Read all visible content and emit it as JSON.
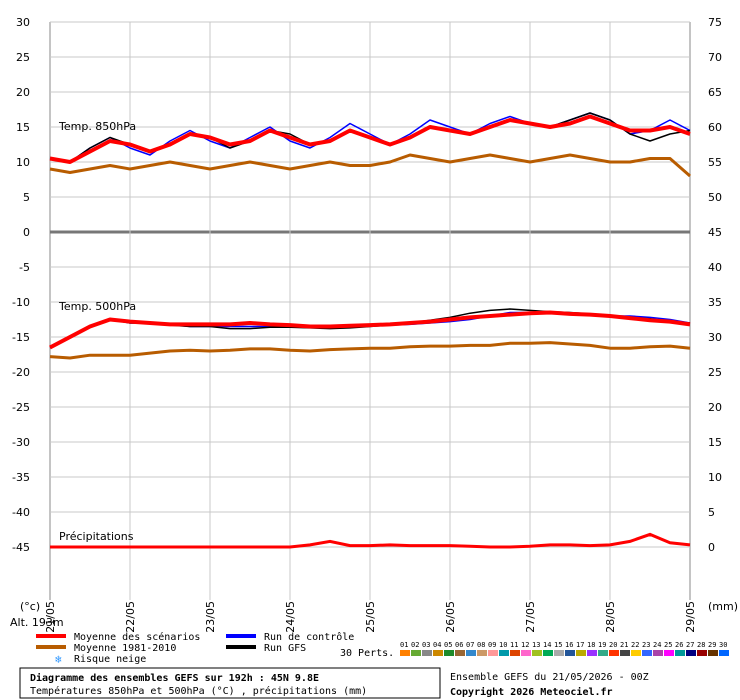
{
  "chart_data": {
    "type": "line",
    "x_dates": [
      "22/05",
      "23/05",
      "24/05",
      "25/05",
      "26/05",
      "27/05",
      "28/05",
      "29/05"
    ],
    "x_start_label": "21/05",
    "y_left_ticks": [
      30,
      25,
      20,
      15,
      10,
      5,
      0,
      -5,
      -10,
      -15,
      -20,
      -25,
      -30,
      -35,
      -40,
      -45
    ],
    "y_right_ticks": [
      75,
      70,
      65,
      60,
      55,
      50,
      45,
      40,
      35,
      30,
      25,
      20,
      15,
      10,
      5,
      0
    ],
    "y_left_unit": "(°c)",
    "y_right_unit": "(mm)",
    "altitude_label": "Alt. 193m",
    "panels": {
      "t850_label": "Temp. 850hPa",
      "t500_label": "Temp. 500hPa",
      "precip_label": "Précipitations"
    },
    "series": [
      {
        "name": "Moyenne des scénarios",
        "color": "#ff0000",
        "t850": [
          10.5,
          10,
          11.5,
          13,
          12.5,
          11.5,
          12.5,
          14,
          13.5,
          12.5,
          13,
          14.5,
          13.5,
          12.5,
          13,
          14.5,
          13.5,
          12.5,
          13.5,
          15,
          14.5,
          14,
          15,
          16,
          15.5,
          15,
          15.5,
          16.5,
          15.5,
          14.5,
          14.5,
          15,
          14
        ],
        "t500": [
          -16.5,
          -15,
          -13.5,
          -12.5,
          -12.8,
          -13,
          -13.2,
          -13.2,
          -13.2,
          -13.2,
          -13,
          -13.2,
          -13.3,
          -13.5,
          -13.5,
          -13.4,
          -13.3,
          -13.2,
          -13,
          -12.8,
          -12.5,
          -12.2,
          -12,
          -11.8,
          -11.6,
          -11.5,
          -11.7,
          -11.8,
          -12,
          -12.3,
          -12.6,
          -12.8,
          -13.2
        ]
      },
      {
        "name": "Moyenne 1981-2010",
        "color": "#b85c00",
        "t850": [
          9,
          8.5,
          9,
          9.5,
          9,
          9.5,
          10,
          9.5,
          9,
          9.5,
          10,
          9.5,
          9,
          9.5,
          10,
          9.5,
          9.5,
          10,
          11,
          10.5,
          10,
          10.5,
          11,
          10.5,
          10,
          10.5,
          11,
          10.5,
          10,
          10,
          10.5,
          10.5,
          8
        ],
        "t500": [
          -17.8,
          -18,
          -17.6,
          -17.6,
          -17.6,
          -17.3,
          -17,
          -16.9,
          -17,
          -16.9,
          -16.7,
          -16.7,
          -16.9,
          -17,
          -16.8,
          -16.7,
          -16.6,
          -16.6,
          -16.4,
          -16.3,
          -16.3,
          -16.2,
          -16.2,
          -15.9,
          -15.9,
          -15.8,
          -16,
          -16.2,
          -16.6,
          -16.6,
          -16.4,
          -16.3,
          -16.6
        ]
      },
      {
        "name": "Run de contrôle",
        "color": "#0000ff",
        "t850": [
          10.5,
          10,
          12,
          13.5,
          12,
          11,
          13,
          14.5,
          13,
          12,
          13.5,
          15,
          13,
          12,
          13.5,
          15.5,
          14,
          12.5,
          14,
          16,
          15,
          14,
          15.5,
          16.5,
          15.5,
          15,
          16,
          17,
          16,
          14,
          14.5,
          16,
          14.5
        ],
        "t500": [
          -16.5,
          -15,
          -13.5,
          -12.5,
          -13,
          -13,
          -13.2,
          -13.5,
          -13.5,
          -13.5,
          -13.5,
          -13.5,
          -13.6,
          -13.6,
          -13.5,
          -13.5,
          -13.4,
          -13.3,
          -13.2,
          -13,
          -12.8,
          -12.5,
          -12,
          -11.5,
          -11.5,
          -11.5,
          -11.6,
          -11.8,
          -12,
          -12,
          -12.2,
          -12.5,
          -13
        ]
      },
      {
        "name": "Run GFS",
        "color": "#000000",
        "t850": [
          10.5,
          10,
          12,
          13.5,
          12.5,
          11.5,
          12.5,
          14,
          13.5,
          12,
          13,
          14.5,
          14,
          12.5,
          13,
          14.5,
          13.5,
          12.5,
          13.5,
          15,
          14.5,
          14,
          15,
          16,
          15.5,
          15,
          16,
          17,
          16,
          14,
          13,
          14,
          14.5
        ],
        "t500": [
          -16.5,
          -15,
          -13.5,
          -12.5,
          -13,
          -13,
          -13.3,
          -13.5,
          -13.5,
          -13.8,
          -13.8,
          -13.6,
          -13.6,
          -13.7,
          -13.8,
          -13.7,
          -13.5,
          -13.3,
          -13,
          -12.6,
          -12.2,
          -11.6,
          -11.2,
          -11,
          -11.2,
          -11.4,
          -11.5,
          -11.7,
          -12,
          -12.2,
          -12.4,
          -12.8,
          -13
        ]
      }
    ],
    "precip": [
      0,
      0,
      0,
      0,
      0,
      0,
      0,
      0,
      0,
      0,
      0,
      0,
      0,
      0.3,
      0.8,
      0.2,
      0.2,
      0.3,
      0.2,
      0.2,
      0.2,
      0.1,
      0,
      0,
      0.1,
      0.3,
      0.3,
      0.2,
      0.3,
      0.8,
      1.8,
      0.6,
      0.3
    ],
    "legend_note": "Risque neige"
  },
  "legend": {
    "mean_label": "Moyenne des scénarios",
    "clim_label": "Moyenne 1981-2010",
    "snow_label": "Risque neige",
    "control_label": "Run de contrôle",
    "gfs_label": "Run GFS",
    "perts_label": "30 Perts.",
    "pert_numbers": [
      "01",
      "02",
      "03",
      "04",
      "05",
      "06",
      "07",
      "08",
      "09",
      "10",
      "11",
      "12",
      "13",
      "14",
      "15",
      "16",
      "17",
      "18",
      "19",
      "20",
      "21",
      "22",
      "23",
      "24",
      "25",
      "26",
      "27",
      "28",
      "29",
      "30"
    ],
    "pert_colors": [
      "#ff8000",
      "#66aa33",
      "#888888",
      "#cc8800",
      "#1e8a2a",
      "#996633",
      "#3388cc",
      "#cc9966",
      "#ff9999",
      "#0099aa",
      "#dd4400",
      "#ff66cc",
      "#a0c020",
      "#00aa55",
      "#aaaaaa",
      "#225599",
      "#bbaa00",
      "#9933ff",
      "#33aa88",
      "#ff3300",
      "#444444",
      "#ffcc00",
      "#3366ff",
      "#aa44aa",
      "#ff00ff",
      "#009999",
      "#000080",
      "#990000",
      "#663300",
      "#0066ff"
    ]
  },
  "footer": {
    "title": "Diagramme des ensembles GEFS sur 192h : 45N 9.8E",
    "subtitle": "Températures 850hPa et 500hPa (°C) , précipitations (mm)",
    "run_info": "Ensemble GEFS du 21/05/2026 - 00Z",
    "copyright": "Copyright 2026 Meteociel.fr"
  }
}
